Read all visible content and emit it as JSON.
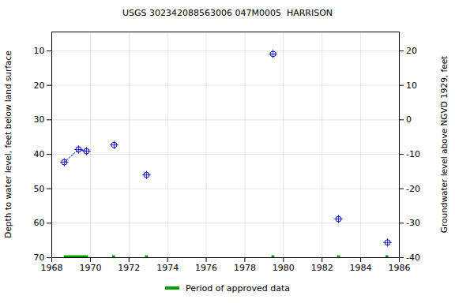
{
  "chart_data": {
    "type": "scatter",
    "title": "USGS 302342088563006 047M0005  HARRISON",
    "x_label": null,
    "y_label": "Depth to water level, feet below land surface",
    "y2_label": "Groundwater level above NGVD 1929, feet",
    "xlim": [
      1968,
      1986
    ],
    "xticks": [
      1968,
      1970,
      1972,
      1974,
      1976,
      1978,
      1980,
      1982,
      1984,
      1986
    ],
    "ylim": [
      70,
      4.5
    ],
    "yticks": [
      10,
      20,
      30,
      40,
      50,
      60,
      70
    ],
    "y2lim": [
      -40,
      25.5
    ],
    "y2ticks": [
      -40,
      -30,
      -20,
      -10,
      0,
      10,
      20
    ],
    "grid": true,
    "legend": "bottom",
    "x": [
      1968.65,
      1969.39,
      1969.8,
      1971.23,
      1972.91,
      1979.46,
      1982.85,
      1985.39
    ],
    "series": [
      {
        "type": "scatter",
        "color": "#0000cc",
        "marker": "circle-plus",
        "values": [
          42.3,
          38.6,
          39.1,
          37.3,
          46.0,
          10.9,
          58.8,
          65.6
        ]
      },
      {
        "type": "line",
        "color": "#0000cc",
        "line_style": "dotted",
        "values": [
          42.3,
          38.6,
          39.1,
          null,
          null,
          null,
          null,
          null
        ]
      },
      {
        "name": "Period of approved data",
        "type": "period",
        "color": "#00a000",
        "periods": [
          [
            1968.65,
            1969.9
          ],
          [
            1971.15,
            1971.3
          ],
          [
            1972.85,
            1973.0
          ],
          [
            1979.4,
            1979.55
          ],
          [
            1982.8,
            1982.95
          ],
          [
            1985.3,
            1985.45
          ]
        ]
      }
    ]
  }
}
